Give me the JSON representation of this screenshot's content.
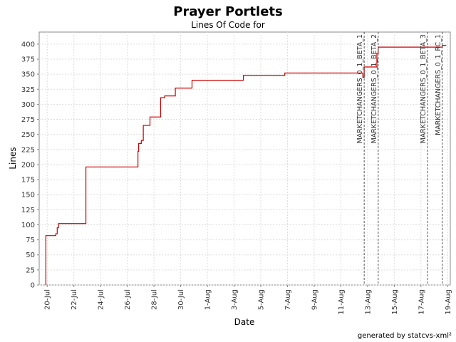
{
  "chart_data": {
    "type": "step",
    "title": "Prayer Portlets",
    "subtitle": "Lines Of Code for",
    "x_label": "Date",
    "y_label": "Lines",
    "footer": "generated by statcvs-xml²",
    "series": [
      {
        "name": "Lines",
        "color": "#cc0000",
        "x": [
          -0.1,
          -0.1,
          0.64,
          0.75,
          0.85,
          2.9,
          6.8,
          6.85,
          7.05,
          7.2,
          7.7,
          8.5,
          8.8,
          9.6,
          10.85,
          14.7,
          17.8,
          23.65,
          23.75,
          24.7,
          24.8,
          29.6,
          29.9
        ],
        "values": [
          0,
          82,
          85,
          95,
          102,
          196,
          222,
          235,
          240,
          265,
          279,
          311,
          314,
          327,
          340,
          348,
          352,
          345,
          362,
          385,
          395,
          398,
          398
        ]
      }
    ],
    "markers": [
      {
        "x": 23.75,
        "label": "MARKETCHANGERS_0_1_BETA_1"
      },
      {
        "x": 24.8,
        "label": "MARKETCHANGERS_0_1_BETA_2"
      },
      {
        "x": 28.5,
        "label": "MARKETCHANGERS_0_1_BETA_3"
      },
      {
        "x": 29.6,
        "label": "MARKETCHANGERS_0_1_RC_1"
      }
    ],
    "xlim": [
      -0.6,
      30.2
    ],
    "xticks": [
      {
        "value": 0,
        "label": "20-Jul"
      },
      {
        "value": 2,
        "label": "22-Jul"
      },
      {
        "value": 4,
        "label": "24-Jul"
      },
      {
        "value": 6,
        "label": "26-Jul"
      },
      {
        "value": 8,
        "label": "28-Jul"
      },
      {
        "value": 10,
        "label": "30-Jul"
      },
      {
        "value": 12,
        "label": "1-Aug"
      },
      {
        "value": 14,
        "label": "3-Aug"
      },
      {
        "value": 16,
        "label": "5-Aug"
      },
      {
        "value": 18,
        "label": "7-Aug"
      },
      {
        "value": 20,
        "label": "9-Aug"
      },
      {
        "value": 22,
        "label": "11-Aug"
      },
      {
        "value": 24,
        "label": "13-Aug"
      },
      {
        "value": 26,
        "label": "15-Aug"
      },
      {
        "value": 28,
        "label": "17-Aug"
      },
      {
        "value": 30,
        "label": "19-Aug"
      }
    ],
    "ylim": [
      0,
      420
    ],
    "yticks": [
      0,
      25,
      50,
      75,
      100,
      125,
      150,
      175,
      200,
      225,
      250,
      275,
      300,
      325,
      350,
      375,
      400
    ],
    "grid": true
  }
}
